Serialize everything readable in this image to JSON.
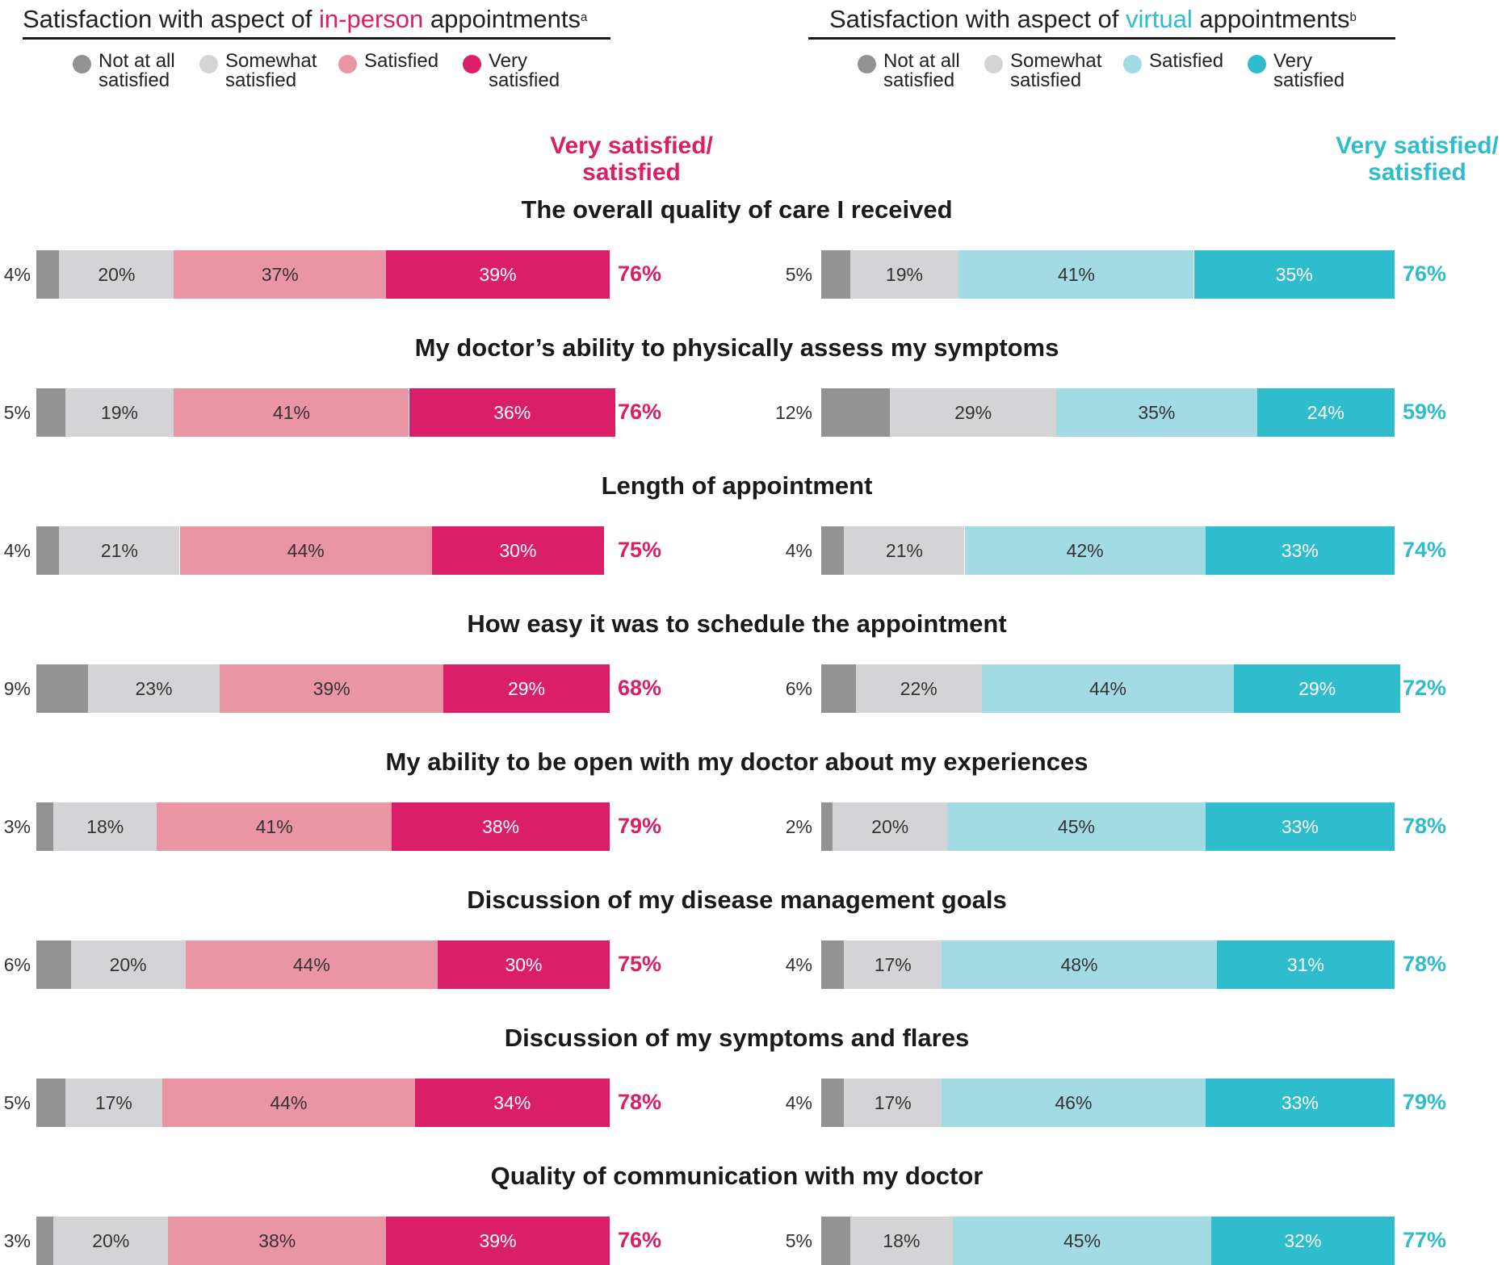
{
  "panels": {
    "in_person": {
      "title_prefix": "Satisfaction with aspect of ",
      "title_highlight": "in-person",
      "title_suffix": " appointments",
      "title_footnote": "a",
      "summary_heading": "Very satisfied/\nsatisfied"
    },
    "virtual": {
      "title_prefix": "Satisfaction with aspect of ",
      "title_highlight": "virtual",
      "title_suffix": " appointments",
      "title_footnote": "b",
      "summary_heading": "Very satisfied/\nsatisfied"
    }
  },
  "legend": {
    "in_person": [
      {
        "label": "Not at all satisfied",
        "color": "#939393"
      },
      {
        "label": "Somewhat satisfied",
        "color": "#d4d4d6"
      },
      {
        "label": "Satisfied",
        "color": "#e995a4"
      },
      {
        "label": "Very satisfied",
        "color": "#da1f68"
      }
    ],
    "virtual": [
      {
        "label": "Not at all satisfied",
        "color": "#939393"
      },
      {
        "label": "Somewhat satisfied",
        "color": "#d4d4d6"
      },
      {
        "label": "Satisfied",
        "color": "#a3dbe4"
      },
      {
        "label": "Very satisfied",
        "color": "#2fbccc"
      }
    ]
  },
  "colors": {
    "in_person_accent": "#da1f68",
    "virtual_accent": "#2fbccc",
    "title_text": "#222222"
  },
  "chart_data": {
    "type": "bar",
    "orientation": "horizontal",
    "stacked": true,
    "unit": "%",
    "categories": [
      "The overall quality of care I received",
      "My doctor’s ability to physically assess my symptoms",
      "Length of appointment",
      "How easy it was to schedule the appointment",
      "My ability to be open with my doctor about my experiences",
      "Discussion of my disease management goals",
      "Discussion of my symptoms and flares",
      "Quality of communication with my doctor"
    ],
    "segment_names": [
      "Not at all satisfied",
      "Somewhat satisfied",
      "Satisfied",
      "Very satisfied"
    ],
    "in_person": {
      "values": [
        [
          4,
          20,
          37,
          39
        ],
        [
          5,
          19,
          41,
          36
        ],
        [
          4,
          21,
          44,
          30
        ],
        [
          9,
          23,
          39,
          29
        ],
        [
          3,
          18,
          41,
          38
        ],
        [
          6,
          20,
          44,
          30
        ],
        [
          5,
          17,
          44,
          34
        ],
        [
          3,
          20,
          38,
          39
        ]
      ],
      "very_satisfied_or_satisfied": [
        76,
        76,
        75,
        68,
        79,
        75,
        78,
        76
      ]
    },
    "virtual": {
      "values": [
        [
          5,
          19,
          41,
          35
        ],
        [
          12,
          29,
          35,
          24
        ],
        [
          4,
          21,
          42,
          33
        ],
        [
          6,
          22,
          44,
          29
        ],
        [
          2,
          20,
          45,
          33
        ],
        [
          4,
          17,
          48,
          31
        ],
        [
          4,
          17,
          46,
          33
        ],
        [
          5,
          18,
          45,
          32
        ]
      ],
      "very_satisfied_or_satisfied": [
        76,
        59,
        74,
        72,
        78,
        78,
        79,
        77
      ]
    }
  }
}
